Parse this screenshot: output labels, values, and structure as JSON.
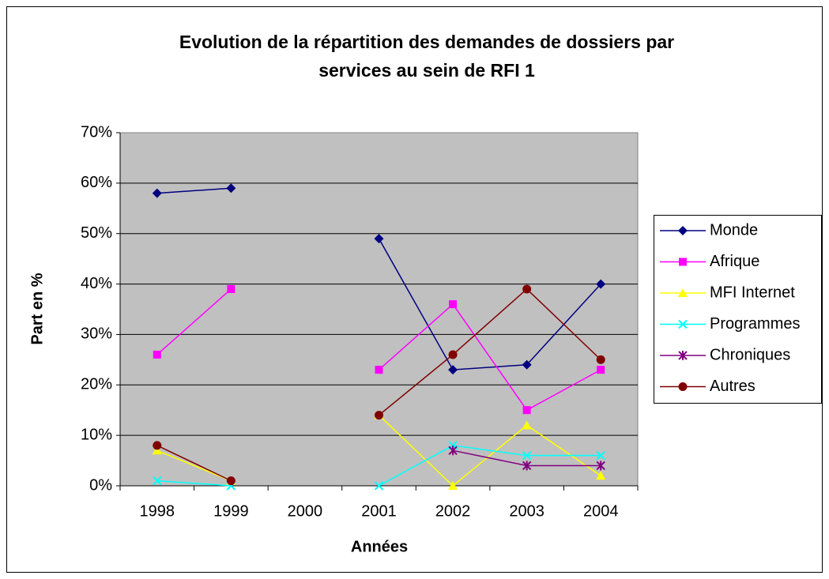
{
  "chart_data": {
    "type": "line",
    "title": [
      "Evolution de la répartition des demandes de dossiers par",
      "services au sein de RFI 1"
    ],
    "x_label": "Années",
    "y_label": "Part en %",
    "categories": [
      "1998",
      "1999",
      "2000",
      "2001",
      "2002",
      "2003",
      "2004"
    ],
    "ylim": [
      0,
      70
    ],
    "yticks": [
      {
        "value": 0,
        "label": "0%"
      },
      {
        "value": 10,
        "label": "10%"
      },
      {
        "value": 20,
        "label": "20%"
      },
      {
        "value": 30,
        "label": "30%"
      },
      {
        "value": 40,
        "label": "40%"
      },
      {
        "value": 50,
        "label": "50%"
      },
      {
        "value": 60,
        "label": "60%"
      },
      {
        "value": 70,
        "label": "70%"
      }
    ],
    "grid": true,
    "legend": "right",
    "series": [
      {
        "name": "Monde",
        "color": "#000080",
        "marker": "diamond",
        "values": [
          58,
          59,
          null,
          49,
          23,
          24,
          40
        ]
      },
      {
        "name": "Afrique",
        "color": "#ff00ff",
        "marker": "square",
        "values": [
          26,
          39,
          null,
          23,
          36,
          15,
          23
        ]
      },
      {
        "name": "MFI Internet",
        "color": "#ffff00",
        "marker": "triangle",
        "values": [
          7,
          1,
          null,
          14,
          0,
          12,
          2
        ]
      },
      {
        "name": "Programmes",
        "color": "#00ffff",
        "marker": "x",
        "values": [
          1,
          0,
          null,
          0,
          8,
          6,
          6
        ]
      },
      {
        "name": "Chroniques",
        "color": "#800080",
        "marker": "star",
        "values": [
          null,
          null,
          null,
          null,
          7,
          4,
          4
        ]
      },
      {
        "name": "Autres",
        "color": "#800000",
        "marker": "circle",
        "values": [
          8,
          1,
          null,
          14,
          26,
          39,
          25
        ]
      }
    ]
  }
}
